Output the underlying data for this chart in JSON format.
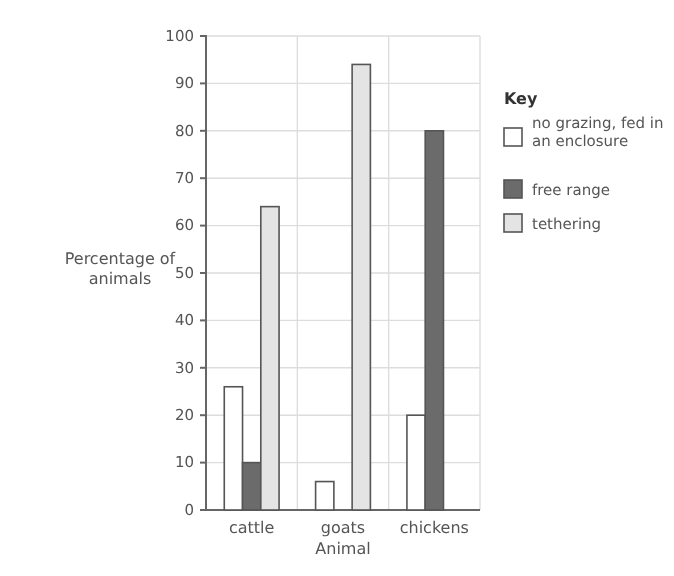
{
  "chart_data": {
    "type": "bar",
    "xlabel": "Animal",
    "ylabel": "Percentage of animals",
    "legend_title": "Key",
    "categories": [
      "cattle",
      "goats",
      "chickens"
    ],
    "series": [
      {
        "name": "no grazing, fed in an enclosure",
        "color": "#ffffff",
        "values": [
          26,
          6,
          20
        ]
      },
      {
        "name": "free range",
        "color": "#6b6b6b",
        "values": [
          10,
          0,
          80
        ]
      },
      {
        "name": "tethering",
        "color": "#e4e4e4",
        "values": [
          64,
          94,
          0
        ]
      }
    ],
    "ylim": [
      0,
      100
    ],
    "yticks": [
      0,
      10,
      20,
      30,
      40,
      50,
      60,
      70,
      80,
      90,
      100
    ],
    "grid": true,
    "legend": "right"
  }
}
